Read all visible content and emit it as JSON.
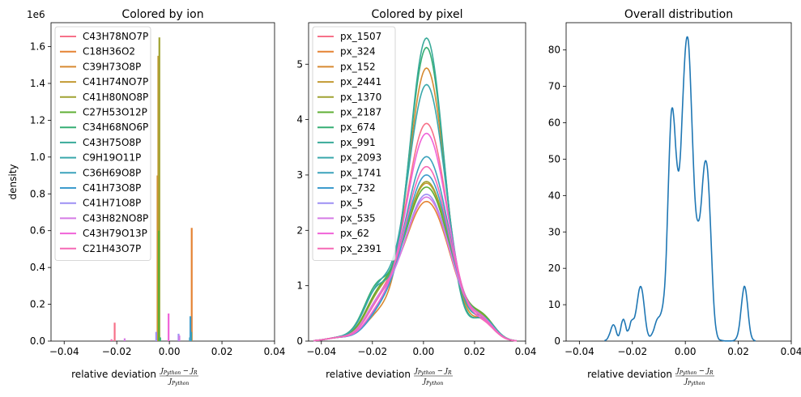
{
  "chart_data": [
    {
      "type": "histogram",
      "title": "Colored by ion",
      "xlabel": "relative deviation",
      "xlabel_math": {
        "num": "J",
        "num_sub": "Python",
        "minus": " − ",
        "num2": "J",
        "num2_sub": "R",
        "den": "J",
        "den_sub": "Python"
      },
      "ylabel": "density",
      "y_offset_text": "1e6",
      "xlim": [
        -0.045,
        0.04
      ],
      "ylim": [
        0,
        1.73
      ],
      "xticks": [
        -0.04,
        -0.02,
        0.0,
        0.02,
        0.04
      ],
      "xtick_labels": [
        "−0.04",
        "−0.02",
        "0.00",
        "0.02",
        "0.04"
      ],
      "yticks": [
        0,
        0.2,
        0.4,
        0.6,
        0.8,
        1.0,
        1.2,
        1.4,
        1.6
      ],
      "ytick_labels": [
        "0.0",
        "0.2",
        "0.4",
        "0.6",
        "0.8",
        "1.0",
        "1.2",
        "1.4",
        "1.6"
      ],
      "legend_position": "top-left",
      "series": [
        {
          "name": "C43H78NO7P",
          "color": "#f77189",
          "bars": [
            {
              "x": -0.0208,
              "y": 0.1
            },
            {
              "x": -0.0047,
              "y": 0.02
            }
          ]
        },
        {
          "name": "C18H36O2",
          "color": "#e58333",
          "bars": [
            {
              "x": 0.0085,
              "y": 0.615
            }
          ]
        },
        {
          "name": "C39H73O8P",
          "color": "#d78a31",
          "bars": [
            {
              "x": -0.0045,
              "y": 0.9
            }
          ]
        },
        {
          "name": "C41H74NO7P",
          "color": "#c39a33",
          "bars": [
            {
              "x": -0.0042,
              "y": 1.55
            }
          ]
        },
        {
          "name": "C41H80NO8P",
          "color": "#a0a332",
          "bars": [
            {
              "x": -0.0038,
              "y": 1.65
            }
          ]
        },
        {
          "name": "C27H53O12P",
          "color": "#5faf34",
          "bars": [
            {
              "x": -0.004,
              "y": 0.6
            }
          ]
        },
        {
          "name": "C34H68NO6P",
          "color": "#36ae74",
          "bars": [
            {
              "x": -0.0035,
              "y": 0.02
            }
          ]
        },
        {
          "name": "C43H75O8P",
          "color": "#38aa99",
          "bars": [
            {
              "x": 0.0083,
              "y": 0.05
            }
          ]
        },
        {
          "name": "C9H19O11P",
          "color": "#3aa8ab",
          "bars": [
            {
              "x": 0.008,
              "y": 0.03
            }
          ]
        },
        {
          "name": "C36H69O8P",
          "color": "#3ca3bc",
          "bars": [
            {
              "x": 0.0078,
              "y": 0.02
            }
          ]
        },
        {
          "name": "C41H73O8P",
          "color": "#3e9ccd",
          "bars": [
            {
              "x": 0.008,
              "y": 0.135
            }
          ]
        },
        {
          "name": "C41H71O8P",
          "color": "#9d8ff4",
          "bars": [
            {
              "x": -0.005,
              "y": 0.05
            },
            {
              "x": 0.0035,
              "y": 0.04
            }
          ]
        },
        {
          "name": "C43H82NO8P",
          "color": "#d57ae5",
          "bars": [
            {
              "x": -0.017,
              "y": 0.015
            },
            {
              "x": 0.0038,
              "y": 0.03
            }
          ]
        },
        {
          "name": "C43H79O13P",
          "color": "#f063d8",
          "bars": [
            {
              "x": -0.0003,
              "y": 0.15
            }
          ]
        },
        {
          "name": "C21H43O7P",
          "color": "#f569b5",
          "bars": [
            {
              "x": -0.022,
              "y": 0.01
            }
          ]
        }
      ]
    },
    {
      "type": "line",
      "title": "Colored by pixel",
      "xlabel": "relative deviation",
      "xlim": [
        -0.045,
        0.04
      ],
      "ylim": [
        0,
        5.75
      ],
      "xticks": [
        -0.04,
        -0.02,
        0.0,
        0.02,
        0.04
      ],
      "xtick_labels": [
        "−0.04",
        "−0.02",
        "0.00",
        "0.02",
        "0.04"
      ],
      "yticks": [
        0,
        1,
        2,
        3,
        4,
        5
      ],
      "ytick_labels": [
        "0",
        "1",
        "2",
        "3",
        "4",
        "5"
      ],
      "legend_position": "top-left",
      "series": [
        {
          "name": "px_1507",
          "color": "#f77189",
          "peak": 3.93,
          "shoulder": 0.55,
          "bump": 0.28
        },
        {
          "name": "px_324",
          "color": "#e58333",
          "peak": 2.52,
          "shoulder": 0.62,
          "bump": 0.3
        },
        {
          "name": "px_152",
          "color": "#d78a31",
          "peak": 4.93,
          "shoulder": 0.4,
          "bump": 0.36
        },
        {
          "name": "px_2441",
          "color": "#c39a33",
          "peak": 2.85,
          "shoulder": 0.6,
          "bump": 0.34
        },
        {
          "name": "px_1370",
          "color": "#a0a332",
          "peak": 2.88,
          "shoulder": 0.58,
          "bump": 0.33
        },
        {
          "name": "px_2187",
          "color": "#5faf34",
          "peak": 2.78,
          "shoulder": 0.62,
          "bump": 0.34
        },
        {
          "name": "px_674",
          "color": "#36ae74",
          "peak": 5.3,
          "shoulder": 0.95,
          "bump": 0.38
        },
        {
          "name": "px_991",
          "color": "#38aa99",
          "peak": 5.47,
          "shoulder": 0.9,
          "bump": 0.4
        },
        {
          "name": "px_2093",
          "color": "#3aa8ab",
          "peak": 4.63,
          "shoulder": 0.85,
          "bump": 0.38
        },
        {
          "name": "px_1741",
          "color": "#3ca3bc",
          "peak": 3.33,
          "shoulder": 0.35,
          "bump": 0.3
        },
        {
          "name": "px_732",
          "color": "#3e9ccd",
          "peak": 3.0,
          "shoulder": 0.3,
          "bump": 0.3
        },
        {
          "name": "px_5",
          "color": "#9d8ff4",
          "peak": 2.65,
          "shoulder": 0.45,
          "bump": 0.28
        },
        {
          "name": "px_535",
          "color": "#d57ae5",
          "peak": 2.6,
          "shoulder": 0.48,
          "bump": 0.28
        },
        {
          "name": "px_62",
          "color": "#f063d8",
          "peak": 3.75,
          "shoulder": 0.4,
          "bump": 0.28
        },
        {
          "name": "px_2391",
          "color": "#f569b5",
          "peak": 3.15,
          "shoulder": 0.45,
          "bump": 0.28
        }
      ]
    },
    {
      "type": "line",
      "title": "Overall distribution",
      "xlabel": "relative deviation",
      "xlim": [
        -0.045,
        0.04
      ],
      "ylim": [
        0,
        87.5
      ],
      "xticks": [
        -0.04,
        -0.02,
        0.0,
        0.02,
        0.04
      ],
      "xtick_labels": [
        "−0.04",
        "−0.02",
        "0.00",
        "0.02",
        "0.04"
      ],
      "yticks": [
        0,
        10,
        20,
        30,
        40,
        50,
        60,
        70,
        80
      ],
      "ytick_labels": [
        "0",
        "10",
        "20",
        "30",
        "40",
        "50",
        "60",
        "70",
        "80"
      ],
      "color": "#1f77b4",
      "x": [
        -0.0305,
        -0.0295,
        -0.0285,
        -0.0278,
        -0.0272,
        -0.0265,
        -0.0258,
        -0.0252,
        -0.0246,
        -0.024,
        -0.0233,
        -0.0226,
        -0.022,
        -0.0212,
        -0.0205,
        -0.0198,
        -0.0192,
        -0.0186,
        -0.018,
        -0.0174,
        -0.0168,
        -0.0162,
        -0.0156,
        -0.015,
        -0.0144,
        -0.0138,
        -0.0132,
        -0.0126,
        -0.012,
        -0.0114,
        -0.0108,
        -0.0102,
        -0.0096,
        -0.009,
        -0.0084,
        -0.0078,
        -0.0072,
        -0.0066,
        -0.006,
        -0.0054,
        -0.0048,
        -0.0042,
        -0.0036,
        -0.003,
        -0.0024,
        -0.0018,
        -0.0012,
        -0.0006,
        0.0,
        0.0006,
        0.0012,
        0.0018,
        0.0024,
        0.003,
        0.0036,
        0.0042,
        0.0048,
        0.0054,
        0.006,
        0.0066,
        0.0072,
        0.0078,
        0.0084,
        0.009,
        0.0096,
        0.0102,
        0.0108,
        0.0114,
        0.012,
        0.0126,
        0.0132,
        0.0138,
        0.0144,
        0.015,
        0.0156,
        0.0162,
        0.0168,
        0.0174,
        0.018,
        0.0186,
        0.0192,
        0.0198,
        0.0204,
        0.021,
        0.0216,
        0.0222,
        0.0228,
        0.0234,
        0.024,
        0.0246,
        0.0252,
        0.0258,
        0.0265
      ],
      "y": [
        0.1,
        0.6,
        2.2,
        3.8,
        4.5,
        3.8,
        2.0,
        1.5,
        2.8,
        5.0,
        6.0,
        4.5,
        2.8,
        3.5,
        5.5,
        6.0,
        6.5,
        8.5,
        11.5,
        14.2,
        15.0,
        13.5,
        10.0,
        6.0,
        3.0,
        1.6,
        1.4,
        2.0,
        3.0,
        4.5,
        5.8,
        6.5,
        7.0,
        8.2,
        10.5,
        15.0,
        24.0,
        38.0,
        52.0,
        62.0,
        64.0,
        60.0,
        53.0,
        48.0,
        47.0,
        52.0,
        62.0,
        72.0,
        80.0,
        83.5,
        82.0,
        74.0,
        62.0,
        50.0,
        40.0,
        34.5,
        33.0,
        34.0,
        38.0,
        44.0,
        48.5,
        49.5,
        47.0,
        40.0,
        30.0,
        19.0,
        10.0,
        4.5,
        1.8,
        0.6,
        0.3,
        0.2,
        0.1,
        0.05,
        0.05,
        0.05,
        0.05,
        0.05,
        0.1,
        0.3,
        0.8,
        2.0,
        4.5,
        8.5,
        12.5,
        15.0,
        14.0,
        10.5,
        6.0,
        2.6,
        0.9,
        0.3,
        0.05
      ]
    }
  ]
}
